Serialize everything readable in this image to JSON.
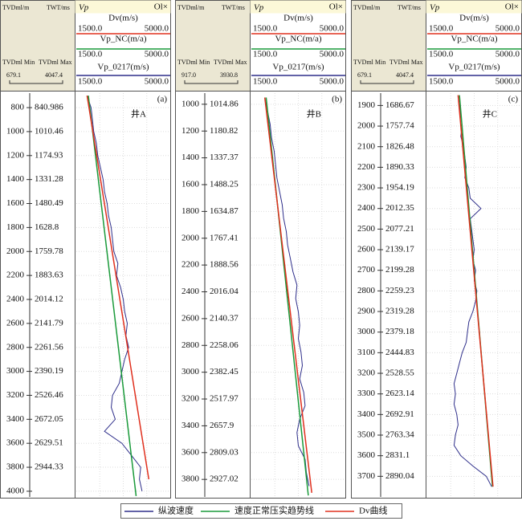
{
  "chart_data": [
    {
      "type": "line",
      "panel_label": "(a)",
      "well": "井A",
      "depth_label": "TVDml/m",
      "time_label": "TWT/ms",
      "min_label": "TVDml Min",
      "max_label": "TVDml Max",
      "depth_min": 679.1,
      "depth_max": 4047.4,
      "track_title": "Vp",
      "close_label": "Ol×",
      "xlim": [
        1500,
        5000
      ],
      "xticks": [
        {
          "value": 1500,
          "label": "1500.0"
        },
        {
          "value": 5000,
          "label": "5000.0"
        }
      ],
      "ylim": [
        679.1,
        4047.4
      ],
      "yticks": [
        800,
        1000,
        1200,
        1400,
        1600,
        1800,
        2000,
        2200,
        2400,
        2600,
        2800,
        3000,
        3200,
        3400,
        3600,
        3800,
        4000
      ],
      "twt_labels": [
        840.986,
        1010.46,
        1174.93,
        1331.28,
        1480.49,
        1628.8,
        1759.78,
        1883.63,
        2014.12,
        2141.79,
        2261.56,
        2390.19,
        2526.46,
        2672.05,
        2629.51,
        2944.33
      ],
      "series": [
        {
          "name": "纵波速度",
          "header": "Vp_0217(m/s)",
          "color": "#2e2e8a",
          "y": [
            700,
            800,
            900,
            1000,
            1100,
            1200,
            1300,
            1400,
            1500,
            1600,
            1700,
            1800,
            1900,
            2000,
            2100,
            2200,
            2300,
            2400,
            2500,
            2600,
            2700,
            2800,
            2900,
            3000,
            3100,
            3200,
            3300,
            3400,
            3500,
            3600,
            3700,
            3800,
            3900,
            4000
          ],
          "values": [
            1900,
            2050,
            2100,
            2150,
            2250,
            2300,
            2400,
            2500,
            2550,
            2650,
            2700,
            2800,
            2850,
            2900,
            3050,
            3000,
            3150,
            3250,
            3300,
            3400,
            3350,
            3450,
            3300,
            3200,
            3100,
            2850,
            2800,
            2950,
            2550,
            3200,
            3550,
            3900,
            3850,
            3950
          ]
        },
        {
          "name": "速度正常压实趋势线",
          "header": "Vp_NC(m/a)",
          "color": "#1a9a3a",
          "y": [
            700,
            4040
          ],
          "values": [
            1950,
            3730
          ]
        },
        {
          "name": "Dv曲线",
          "header": "Dv(m/s)",
          "color": "#e0301e",
          "y": [
            700,
            3900
          ],
          "values": [
            1900,
            4200
          ]
        }
      ]
    },
    {
      "type": "line",
      "panel_label": "(b)",
      "well": "井B",
      "depth_label": "TVDml/m",
      "time_label": "TWT/ms",
      "min_label": "TVDml Min",
      "max_label": "TVDml Max",
      "depth_min": {
        "value": 917,
        "label": "917.0"
      },
      "depth_max": 3930.8,
      "track_title": "Vp",
      "close_label": "Ol×",
      "xlim": [
        1500,
        5000
      ],
      "xticks": [
        {
          "value": 1500,
          "label": "1500.0"
        },
        {
          "value": 5000,
          "label": "5000.0"
        }
      ],
      "ylim": [
        917,
        3930.8
      ],
      "yticks": [
        1000,
        1200,
        1400,
        1600,
        1800,
        2000,
        2200,
        2400,
        2600,
        2800,
        3000,
        3200,
        3400,
        3600,
        3800
      ],
      "twt_labels": [
        1014.86,
        1180.82,
        1337.37,
        1488.25,
        1634.87,
        1767.41,
        1888.56,
        2016.04,
        2140.37,
        2258.06,
        2382.45,
        2517.97,
        2657.9,
        2809.03,
        2927.02
      ],
      "series": [
        {
          "name": "纵波速度",
          "header": "Vp_0217(m/s)",
          "color": "#2e2e8a",
          "y": [
            950,
            1050,
            1150,
            1250,
            1350,
            1450,
            1550,
            1650,
            1750,
            1850,
            1950,
            2050,
            2150,
            2250,
            2350,
            2450,
            2550,
            2650,
            2750,
            2850,
            2950,
            3050,
            3150,
            3250,
            3350,
            3450,
            3550,
            3650,
            3750,
            3850
          ],
          "values": [
            2000,
            2100,
            2200,
            2250,
            2350,
            2400,
            2450,
            2550,
            2650,
            2700,
            2800,
            2850,
            2950,
            3050,
            3200,
            3150,
            3250,
            3300,
            3250,
            3350,
            3400,
            3300,
            3450,
            3500,
            3300,
            3200,
            3250,
            3500,
            3550,
            3650
          ]
        },
        {
          "name": "速度正常压实趋势线",
          "header": "Vp_NC(m/a)",
          "color": "#1a9a3a",
          "y": [
            950,
            3920
          ],
          "values": [
            2050,
            3620
          ]
        },
        {
          "name": "Dv曲线",
          "header": "Dv(m/s)",
          "color": "#e0301e",
          "y": [
            950,
            3900
          ],
          "values": [
            2000,
            3750
          ]
        }
      ]
    },
    {
      "type": "line",
      "panel_label": "(c)",
      "well": "井C",
      "depth_label": "TVDml/m",
      "time_label": "TWT/ms",
      "min_label": "TVDml Min",
      "max_label": "TVDml Max",
      "depth_min": 679.1,
      "depth_max": 4047.4,
      "track_title": "Vp",
      "close_label": "Ol×",
      "xlim": [
        1500,
        5000
      ],
      "xticks": [
        {
          "value": 1500,
          "label": "1500.0"
        },
        {
          "value": 5000,
          "label": "5000.0"
        }
      ],
      "ylim": [
        1840,
        3800
      ],
      "yticks": [
        1900,
        2000,
        2100,
        2200,
        2300,
        2400,
        2500,
        2600,
        2700,
        2800,
        2900,
        3000,
        3100,
        3200,
        3300,
        3400,
        3500,
        3600,
        3700
      ],
      "twt_labels": [
        1686.67,
        1757.74,
        1826.48,
        1890.33,
        1954.19,
        2012.35,
        2077.21,
        2139.17,
        2199.28,
        2259.23,
        2319.28,
        2379.18,
        2444.83,
        2528.55,
        2623.14,
        2692.91,
        2763.34,
        2831.1,
        2890.04
      ],
      "series": [
        {
          "name": "纵波速度",
          "header": "Vp_0217(m/s)",
          "color": "#2e2e8a",
          "y": [
            1850,
            1900,
            1950,
            2000,
            2050,
            2100,
            2150,
            2200,
            2250,
            2300,
            2350,
            2400,
            2450,
            2500,
            2550,
            2600,
            2650,
            2700,
            2750,
            2800,
            2850,
            2900,
            2950,
            3000,
            3050,
            3100,
            3150,
            3200,
            3250,
            3300,
            3350,
            3400,
            3450,
            3500,
            3550,
            3600,
            3650,
            3700,
            3750
          ],
          "values": [
            2650,
            2700,
            2750,
            2800,
            2750,
            2850,
            2900,
            2950,
            2900,
            3050,
            3100,
            3500,
            3100,
            3150,
            3200,
            3250,
            3200,
            3300,
            3250,
            3350,
            3300,
            3200,
            3050,
            3000,
            2950,
            2800,
            2700,
            2600,
            2500,
            2550,
            2500,
            2600,
            2650,
            2550,
            2500,
            2750,
            3200,
            3700,
            3900
          ]
        },
        {
          "name": "速度正常压实趋势线",
          "header": "Vp_NC(m/a)",
          "color": "#1a9a3a",
          "y": [
            1850,
            3750
          ],
          "values": [
            2700,
            3930
          ]
        },
        {
          "name": "Dv曲线",
          "header": "Dv(m/s)",
          "color": "#e0301e",
          "y": [
            1850,
            3750
          ],
          "values": [
            2650,
            3950
          ]
        }
      ]
    }
  ]
}
